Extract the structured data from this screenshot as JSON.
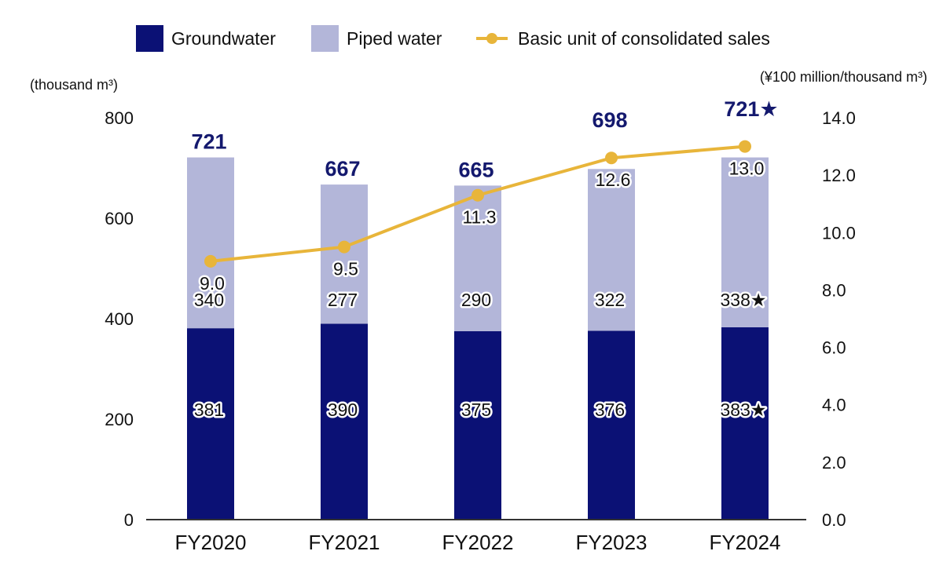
{
  "colors": {
    "groundwater": "#0b1175",
    "piped": "#b3b6d9",
    "line": "#e8b53a",
    "total_text": "#14196e",
    "axis": "#333333"
  },
  "legend": {
    "groundwater": "Groundwater",
    "piped": "Piped water",
    "line": "Basic unit of consolidated sales"
  },
  "chart_data": {
    "type": "bar",
    "stacked": true,
    "categories": [
      "FY2020",
      "FY2021",
      "FY2022",
      "FY2023",
      "FY2024"
    ],
    "series": [
      {
        "name": "Groundwater",
        "values": [
          381,
          390,
          375,
          376,
          383
        ],
        "labels": [
          "381",
          "390",
          "375",
          "376",
          "383★"
        ]
      },
      {
        "name": "Piped water",
        "values": [
          340,
          277,
          290,
          322,
          338
        ],
        "labels": [
          "340",
          "277",
          "290",
          "322",
          "338★"
        ]
      }
    ],
    "totals": {
      "values": [
        721,
        667,
        665,
        698,
        721
      ],
      "labels": [
        "721",
        "667",
        "665",
        "698",
        "721★"
      ]
    },
    "line_series": {
      "name": "Basic unit of consolidated sales",
      "axis": "right",
      "values": [
        9.0,
        9.5,
        11.3,
        12.6,
        13.0
      ],
      "labels": [
        "9.0",
        "9.5",
        "11.3",
        "12.6",
        "13.0"
      ]
    },
    "y_left": {
      "label": "(thousand m³)",
      "range": [
        0,
        800
      ],
      "ticks": [
        0,
        200,
        400,
        600,
        800
      ],
      "tick_labels": [
        "0",
        "200",
        "400",
        "600",
        "800"
      ]
    },
    "y_right": {
      "label": "(¥100 million/thousand m³)",
      "range": [
        0,
        14
      ],
      "ticks": [
        0,
        2,
        4,
        6,
        8,
        10,
        12,
        14
      ],
      "tick_labels": [
        "0.0",
        "2.0",
        "4.0",
        "6.0",
        "8.0",
        "10.0",
        "12.0",
        "14.0"
      ]
    },
    "grid": false,
    "legend_position": "top"
  }
}
